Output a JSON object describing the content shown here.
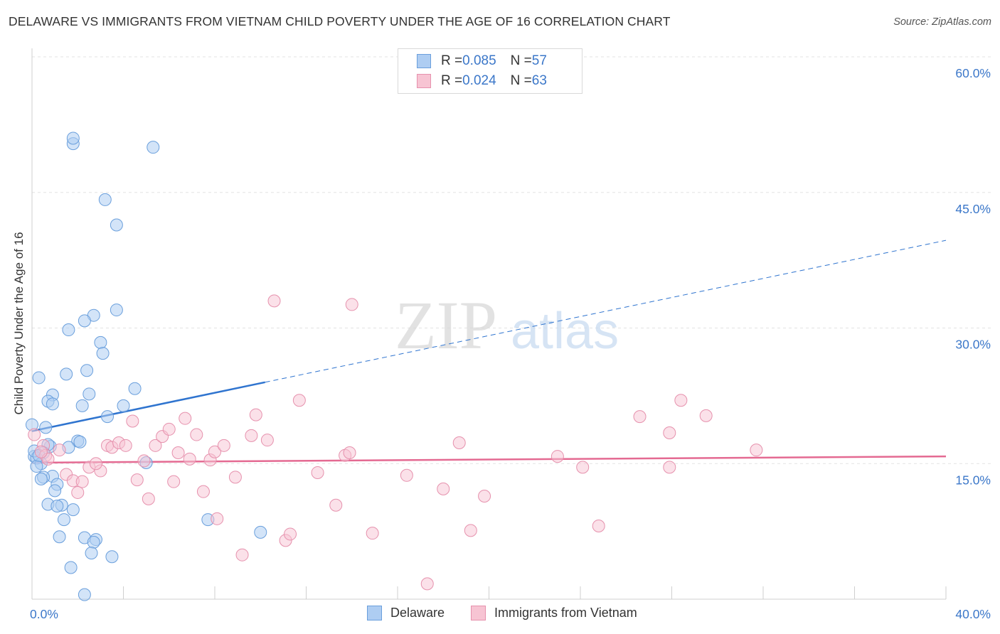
{
  "title": "DELAWARE VS IMMIGRANTS FROM VIETNAM CHILD POVERTY UNDER THE AGE OF 16 CORRELATION CHART",
  "source": "Source: ZipAtlas.com",
  "watermark": {
    "zip": "ZIP",
    "atlas": "atlas"
  },
  "legend_top": {
    "rows": [
      {
        "r_label": "R = ",
        "r_value": "0.085",
        "n_label": "N = ",
        "n_value": "57"
      },
      {
        "r_label": "R = ",
        "r_value": "0.024",
        "n_label": "N = ",
        "n_value": "63"
      }
    ]
  },
  "legend_bottom": {
    "series_a": "Delaware",
    "series_b": "Immigrants from Vietnam"
  },
  "colors": {
    "delaware_fill": "#aecdf2",
    "delaware_stroke": "#6a9fdc",
    "delaware_line": "#2f74cf",
    "vietnam_fill": "#f7c4d3",
    "vietnam_stroke": "#e691ad",
    "vietnam_line": "#e46a92",
    "tick_label": "#3b77c9",
    "grid": "#e3e3e3"
  },
  "chart_data": {
    "type": "scatter",
    "xlabel": "",
    "ylabel": "Child Poverty Under the Age of 16",
    "xlim": [
      0,
      40
    ],
    "ylim": [
      0,
      60
    ],
    "x_tick_labels": [
      {
        "value": 0,
        "label": "0.0%"
      },
      {
        "value": 40,
        "label": "40.0%"
      }
    ],
    "x_minor_ticks": [
      0,
      4,
      8,
      12,
      16,
      20,
      24,
      28,
      32,
      36,
      40
    ],
    "y_ticks": [
      {
        "value": 15,
        "label": "15.0%"
      },
      {
        "value": 30,
        "label": "30.0%"
      },
      {
        "value": 45,
        "label": "45.0%"
      },
      {
        "value": 60,
        "label": "60.0%"
      }
    ],
    "series": [
      {
        "name": "Delaware",
        "r": 0.085,
        "n": 57,
        "trend": {
          "x_start": 0,
          "y_start": 18.6,
          "x_solid_end": 10.2,
          "y_solid_end": 24.0,
          "x_end": 40,
          "y_end": 39.7
        },
        "points": [
          [
            1.8,
            50.4
          ],
          [
            1.8,
            51.0
          ],
          [
            5.3,
            50.0
          ],
          [
            3.2,
            44.2
          ],
          [
            3.7,
            41.4
          ],
          [
            3.7,
            32.0
          ],
          [
            2.7,
            31.4
          ],
          [
            2.3,
            30.8
          ],
          [
            1.6,
            29.8
          ],
          [
            3.0,
            28.4
          ],
          [
            3.1,
            27.2
          ],
          [
            2.4,
            25.3
          ],
          [
            1.5,
            24.9
          ],
          [
            0.3,
            24.5
          ],
          [
            2.5,
            22.7
          ],
          [
            0.9,
            22.6
          ],
          [
            4.5,
            23.3
          ],
          [
            0.7,
            21.9
          ],
          [
            0.9,
            21.6
          ],
          [
            2.2,
            21.4
          ],
          [
            4.0,
            21.4
          ],
          [
            3.3,
            20.2
          ],
          [
            0.6,
            19.0
          ],
          [
            0.0,
            19.3
          ],
          [
            2.0,
            17.5
          ],
          [
            2.1,
            17.4
          ],
          [
            0.8,
            16.9
          ],
          [
            1.6,
            16.8
          ],
          [
            0.7,
            17.1
          ],
          [
            0.5,
            16.2
          ],
          [
            0.1,
            15.8
          ],
          [
            0.2,
            15.6
          ],
          [
            0.4,
            15.0
          ],
          [
            0.2,
            14.7
          ],
          [
            5.0,
            15.1
          ],
          [
            0.9,
            13.6
          ],
          [
            0.5,
            13.5
          ],
          [
            0.4,
            13.3
          ],
          [
            1.1,
            12.7
          ],
          [
            1.0,
            12.0
          ],
          [
            0.7,
            10.5
          ],
          [
            1.3,
            10.4
          ],
          [
            1.1,
            10.3
          ],
          [
            1.8,
            9.9
          ],
          [
            7.7,
            8.8
          ],
          [
            1.4,
            8.8
          ],
          [
            10.0,
            7.4
          ],
          [
            1.2,
            6.9
          ],
          [
            2.3,
            6.8
          ],
          [
            2.8,
            6.6
          ],
          [
            2.7,
            6.3
          ],
          [
            2.6,
            5.1
          ],
          [
            3.5,
            4.7
          ],
          [
            1.7,
            3.5
          ],
          [
            2.3,
            0.5
          ],
          [
            0.1,
            16.4
          ],
          [
            0.3,
            15.9
          ]
        ]
      },
      {
        "name": "Immigrants from Vietnam",
        "r": 0.024,
        "n": 63,
        "trend": {
          "x_start": 0,
          "y_start": 15.1,
          "x_end": 40,
          "y_end": 15.8
        },
        "points": [
          [
            0.1,
            18.2
          ],
          [
            0.5,
            17.0
          ],
          [
            0.6,
            15.9
          ],
          [
            0.7,
            15.5
          ],
          [
            0.4,
            16.3
          ],
          [
            1.2,
            16.5
          ],
          [
            1.5,
            13.8
          ],
          [
            1.8,
            13.1
          ],
          [
            2.2,
            13.0
          ],
          [
            2.0,
            11.8
          ],
          [
            2.5,
            14.6
          ],
          [
            3.0,
            14.2
          ],
          [
            2.8,
            15.0
          ],
          [
            3.3,
            17.0
          ],
          [
            3.5,
            16.8
          ],
          [
            3.8,
            17.3
          ],
          [
            4.1,
            17.0
          ],
          [
            4.4,
            19.7
          ],
          [
            4.6,
            13.2
          ],
          [
            4.9,
            15.3
          ],
          [
            5.1,
            11.1
          ],
          [
            5.4,
            17.0
          ],
          [
            5.7,
            18.0
          ],
          [
            6.0,
            18.8
          ],
          [
            6.2,
            13.0
          ],
          [
            6.4,
            16.2
          ],
          [
            6.7,
            20.0
          ],
          [
            6.9,
            15.5
          ],
          [
            7.2,
            18.2
          ],
          [
            7.5,
            11.9
          ],
          [
            7.8,
            15.4
          ],
          [
            8.0,
            16.3
          ],
          [
            8.4,
            17.0
          ],
          [
            8.1,
            8.9
          ],
          [
            8.9,
            13.5
          ],
          [
            9.2,
            4.9
          ],
          [
            9.6,
            18.1
          ],
          [
            9.8,
            20.4
          ],
          [
            10.3,
            17.6
          ],
          [
            10.6,
            33.0
          ],
          [
            11.1,
            6.5
          ],
          [
            11.3,
            7.2
          ],
          [
            11.7,
            22.0
          ],
          [
            12.5,
            14.0
          ],
          [
            13.3,
            10.4
          ],
          [
            13.7,
            15.9
          ],
          [
            13.9,
            16.2
          ],
          [
            14.0,
            32.6
          ],
          [
            14.9,
            7.3
          ],
          [
            16.4,
            13.7
          ],
          [
            17.3,
            1.7
          ],
          [
            18.0,
            12.2
          ],
          [
            18.7,
            17.3
          ],
          [
            19.2,
            7.6
          ],
          [
            19.8,
            11.4
          ],
          [
            23.0,
            15.8
          ],
          [
            24.1,
            14.6
          ],
          [
            24.8,
            8.1
          ],
          [
            26.6,
            20.2
          ],
          [
            27.9,
            14.6
          ],
          [
            27.9,
            18.4
          ],
          [
            28.4,
            22.0
          ],
          [
            29.5,
            20.3
          ]
        ],
        "extra_points": [
          [
            31.7,
            16.5
          ]
        ]
      }
    ]
  }
}
